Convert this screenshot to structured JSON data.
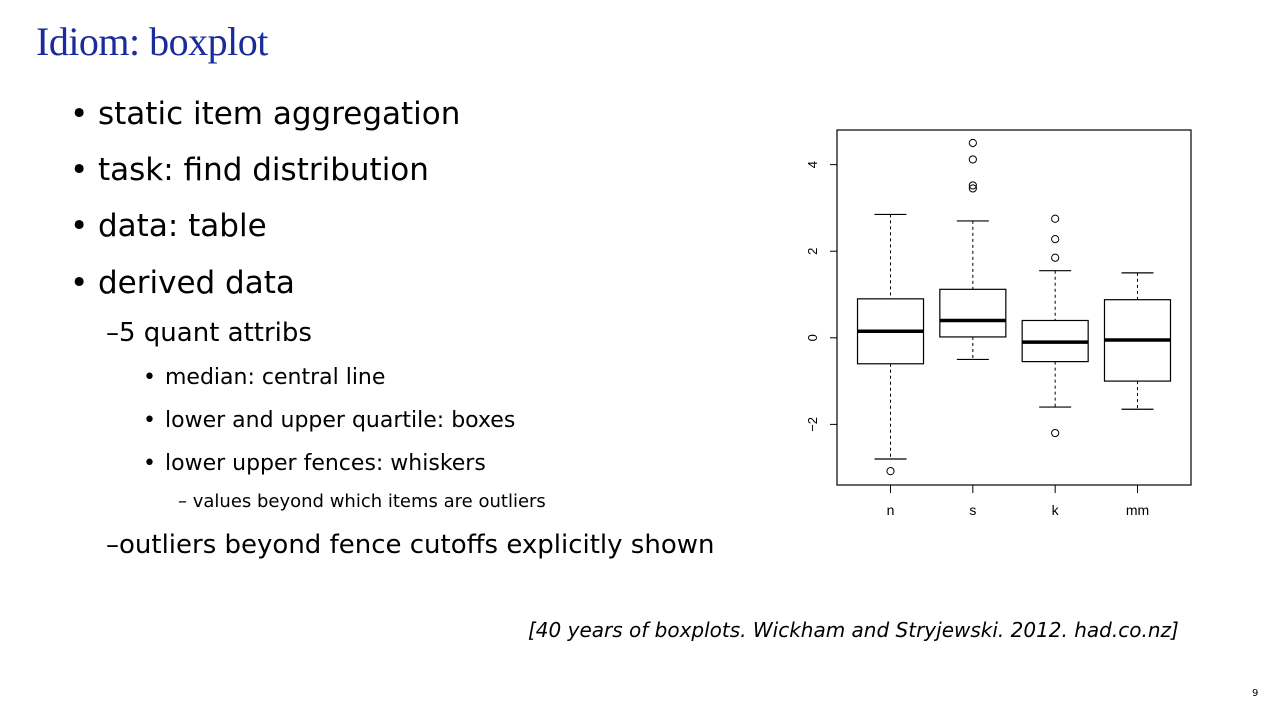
{
  "slide": {
    "title": "Idiom: boxplot",
    "bullets": [
      {
        "text": "static item aggregation"
      },
      {
        "text": "task: find distribution"
      },
      {
        "text": "data: table"
      },
      {
        "text": "derived data"
      }
    ],
    "sub_bullets": [
      {
        "text": "–5 quant attribs"
      },
      {
        "text": "–outliers beyond fence cutoffs explicitly shown"
      }
    ],
    "subsub_bullets": [
      {
        "text": "median: central line"
      },
      {
        "text": "lower and upper quartile: boxes"
      },
      {
        "text": "lower upper fences: whiskers"
      }
    ],
    "level4_bullets": [
      {
        "text": "– values beyond which items are outliers"
      }
    ],
    "citation": "[40 years of boxplots. Wickham and Stryjewski. 2012. had.co.nz]",
    "page_number": "9",
    "title_color": "#1a2b9c"
  },
  "chart_data": {
    "type": "boxplot",
    "categories": [
      "n",
      "s",
      "k",
      "mm"
    ],
    "ylim": [
      -3.4,
      4.8
    ],
    "yticks": [
      -2,
      0,
      2,
      4
    ],
    "ytick_labels": [
      "−2",
      "0",
      "2",
      "4"
    ],
    "grid": false,
    "boxes": [
      {
        "name": "n",
        "lower_whisker": -2.8,
        "q1": -0.6,
        "median": 0.15,
        "q3": 0.9,
        "upper_whisker": 2.85,
        "outliers": [
          -3.08
        ]
      },
      {
        "name": "s",
        "lower_whisker": -0.5,
        "q1": 0.02,
        "median": 0.4,
        "q3": 1.12,
        "upper_whisker": 2.7,
        "outliers": [
          3.45,
          3.52,
          4.12,
          4.5
        ]
      },
      {
        "name": "k",
        "lower_whisker": -1.6,
        "q1": -0.55,
        "median": -0.1,
        "q3": 0.4,
        "upper_whisker": 1.55,
        "outliers": [
          -2.2,
          1.85,
          2.28,
          2.75
        ]
      },
      {
        "name": "mm",
        "lower_whisker": -1.65,
        "q1": -1.0,
        "median": -0.05,
        "q3": 0.88,
        "upper_whisker": 1.5,
        "outliers": []
      }
    ]
  }
}
